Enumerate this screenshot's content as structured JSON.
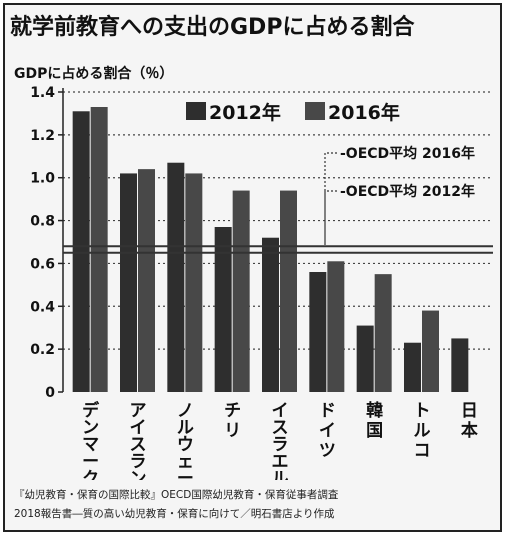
{
  "title": "就学前教育への支出のGDPに占める割合",
  "source_line1": "『幼児教育・保育の国際比較』OECD国際幼児教育・保育従事者調査",
  "source_line2": "2018報告書―質の高い幼児教育・保育に向けて／明石書店より作成",
  "colors": {
    "series_2012": "#2e2e2e",
    "series_2016": "#484848",
    "oecd_line": "#333333",
    "background": "#f5f5f5"
  },
  "chart_data": {
    "type": "bar",
    "title": "就学前教育への支出のGDPに占める割合",
    "ylabel": "GDPに占める割合（％）",
    "ylim": [
      0,
      1.4
    ],
    "yticks": [
      "0",
      "0.2",
      "0.4",
      "0.6",
      "0.8",
      "1.0",
      "1.2",
      "1.4"
    ],
    "grid": true,
    "legend": "top-center",
    "categories": [
      "デンマーク",
      "アイスランド",
      "ノルウェー",
      "チリ",
      "イスラエル",
      "ドイツ",
      "韓国",
      "トルコ",
      "日本"
    ],
    "series": [
      {
        "name": "2012年",
        "values": [
          1.31,
          1.02,
          1.07,
          0.77,
          0.72,
          0.56,
          0.31,
          0.23,
          0.25
        ]
      },
      {
        "name": "2016年",
        "values": [
          1.33,
          1.04,
          1.02,
          0.94,
          0.94,
          0.61,
          0.55,
          0.38,
          null
        ]
      }
    ],
    "reference_lines": [
      {
        "name": "OECD平均 2016年",
        "value": 0.68
      },
      {
        "name": "OECD平均 2012年",
        "value": 0.65
      }
    ]
  }
}
